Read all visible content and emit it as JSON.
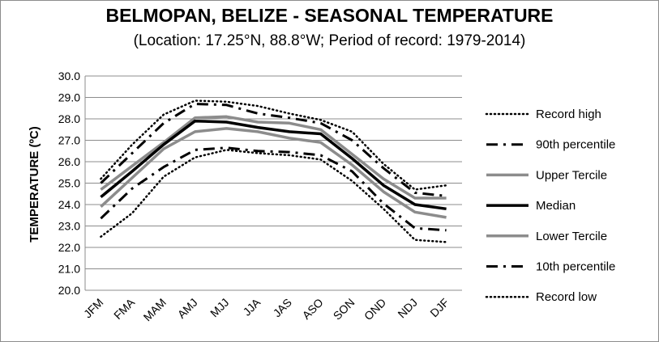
{
  "chart_data": {
    "type": "line",
    "title": "BELMOPAN, BELIZE - SEASONAL TEMPERATURE",
    "subtitle": "(Location: 17.25°N, 88.8°W; Period of record: 1979-2014)",
    "xlabel": "",
    "ylabel": "TEMPERATURE (ºC)",
    "ylim": [
      20.0,
      30.0
    ],
    "ytick_step": 1.0,
    "grid": true,
    "legend_position": "right",
    "categories": [
      "JFM",
      "FMA",
      "MAM",
      "AMJ",
      "MJJ",
      "JJA",
      "JAS",
      "ASO",
      "SON",
      "OND",
      "NDJ",
      "DJF"
    ],
    "series": [
      {
        "name": "Record high",
        "style": "dotted",
        "color": "#000000",
        "values": [
          25.2,
          26.8,
          28.2,
          28.85,
          28.8,
          28.6,
          28.25,
          27.95,
          27.4,
          25.9,
          24.7,
          24.9
        ]
      },
      {
        "name": "90th percentile",
        "style": "dashdot",
        "color": "#000000",
        "values": [
          25.0,
          26.4,
          27.8,
          28.7,
          28.65,
          28.25,
          28.05,
          27.8,
          27.0,
          25.7,
          24.55,
          24.4
        ]
      },
      {
        "name": "Upper Tercile",
        "style": "solid-gray",
        "color": "#8c8c8c",
        "values": [
          24.7,
          25.8,
          26.9,
          28.05,
          28.1,
          27.85,
          27.8,
          27.5,
          26.35,
          25.2,
          24.3,
          24.3
        ]
      },
      {
        "name": "Median",
        "style": "solid-black",
        "color": "#000000",
        "values": [
          24.35,
          25.55,
          26.8,
          27.9,
          27.85,
          27.6,
          27.4,
          27.3,
          26.15,
          24.9,
          24.0,
          23.8
        ]
      },
      {
        "name": "Lower Tercile",
        "style": "solid-gray",
        "color": "#8c8c8c",
        "values": [
          23.9,
          25.25,
          26.6,
          27.4,
          27.55,
          27.4,
          27.1,
          26.9,
          25.85,
          24.6,
          23.65,
          23.4
        ]
      },
      {
        "name": "10th percentile",
        "style": "dashdot",
        "color": "#000000",
        "values": [
          23.35,
          24.75,
          25.75,
          26.55,
          26.65,
          26.5,
          26.45,
          26.3,
          25.55,
          24.05,
          22.9,
          22.8
        ]
      },
      {
        "name": "Record low",
        "style": "dotted",
        "color": "#000000",
        "values": [
          22.5,
          23.6,
          25.3,
          26.2,
          26.55,
          26.4,
          26.3,
          26.1,
          25.1,
          23.8,
          22.35,
          22.25
        ]
      }
    ]
  }
}
